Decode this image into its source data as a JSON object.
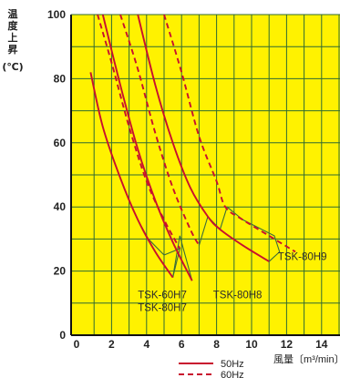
{
  "chart_data": {
    "type": "line",
    "title": "",
    "ylabel_lines": [
      "温",
      "度",
      "上",
      "昇",
      "(℃)"
    ],
    "xlabel": "風量〔m³/min〕",
    "xlim": [
      0,
      15
    ],
    "ylim": [
      0,
      100
    ],
    "xticks": [
      "0",
      "2",
      "4",
      "6",
      "8",
      "10",
      "12",
      "14"
    ],
    "yticks": [
      "0",
      "20",
      "40",
      "60",
      "80",
      "100"
    ],
    "grid": true,
    "background": "#fff200",
    "curve_color": "#c8102e",
    "connector_color": "#3a6e3a",
    "legend": {
      "placement": "bottom-right",
      "items": [
        {
          "label": "50Hz",
          "style": "solid"
        },
        {
          "label": "60Hz",
          "style": "dashed"
        }
      ]
    },
    "series": [
      {
        "style": "solid",
        "x": [
          0.8,
          1.5,
          2.5,
          3.5,
          4.5,
          5.5
        ],
        "y": [
          82,
          65,
          49,
          36,
          26,
          18
        ]
      },
      {
        "style": "dashed",
        "x": [
          1.2,
          2,
          3,
          4,
          5,
          5.9
        ],
        "y": [
          100,
          85,
          65,
          48,
          36,
          27
        ]
      },
      {
        "style": "solid",
        "x": [
          1.5,
          2.5,
          3.5,
          4.5,
          5.5,
          6.6
        ],
        "y": [
          100,
          78,
          58,
          42,
          29,
          17
        ]
      },
      {
        "style": "dashed",
        "x": [
          2.5,
          3.5,
          4.5,
          5.5,
          6.5,
          7
        ],
        "y": [
          100,
          83,
          63,
          46,
          33,
          28
        ]
      },
      {
        "style": "solid",
        "x": [
          3.5,
          4.5,
          5.5,
          6.5,
          7.5,
          8.2,
          9.5,
          11
        ],
        "y": [
          100,
          78,
          60,
          46,
          37,
          33,
          28,
          23
        ]
      },
      {
        "style": "dashed",
        "x": [
          5,
          6,
          7,
          8,
          8.5,
          9.5,
          11,
          12.5
        ],
        "y": [
          100,
          82,
          62,
          48,
          40,
          36,
          31,
          26
        ]
      }
    ],
    "connectors": [
      {
        "x": [
          3.5,
          4.1,
          5.0,
          5.9,
          5.5
        ],
        "y": [
          36,
          30,
          25,
          27,
          18
        ]
      },
      {
        "x": [
          5.5,
          5.9,
          6.6
        ],
        "y": [
          18,
          31,
          17
        ]
      },
      {
        "x": [
          7.0,
          7.5,
          8.2
        ],
        "y": [
          28,
          37,
          33
        ]
      },
      {
        "x": [
          8.2,
          8.6,
          9.5,
          11.3,
          11.6,
          11.0
        ],
        "y": [
          33,
          40,
          36,
          31,
          26,
          23
        ]
      }
    ],
    "annotations": [
      {
        "text": "TSK-60H7",
        "x": 3.5,
        "y": 11.5
      },
      {
        "text": "TSK-80H7",
        "x": 3.5,
        "y": 7.5
      },
      {
        "text": "TSK-80H8",
        "x": 7.8,
        "y": 11.5
      },
      {
        "text": "TSK-80H9",
        "x": 11.5,
        "y": 23.5
      }
    ]
  }
}
